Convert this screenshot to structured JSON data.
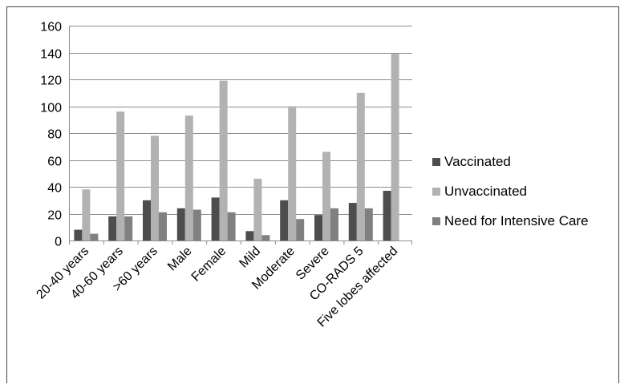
{
  "colors": {
    "background": "#ffffff",
    "grid": "#8c8c8c",
    "axis": "#8c8c8c",
    "frame": "#444444",
    "text": "#000000"
  },
  "chart_data": {
    "type": "bar",
    "title": "",
    "xlabel": "",
    "ylabel": "",
    "ylim": [
      0,
      160
    ],
    "yticks": [
      0,
      20,
      40,
      60,
      80,
      100,
      120,
      140,
      160
    ],
    "grid": true,
    "legend_position": "right",
    "categories": [
      "20-40 years",
      "40-60 years",
      ">60 years",
      "Male",
      "Female",
      "Mild",
      "Moderate",
      "Severe",
      "CO-RADS 5",
      "Five lobes affected"
    ],
    "series": [
      {
        "name": "Vaccinated",
        "color": "#4d4d4d",
        "values": [
          8,
          18,
          30,
          24,
          32,
          7,
          30,
          19,
          28,
          37
        ]
      },
      {
        "name": "Unvaccinated",
        "color": "#b2b2b2",
        "values": [
          38,
          96,
          78,
          93,
          119,
          46,
          100,
          66,
          110,
          139
        ]
      },
      {
        "name": "Need for Intensive Care",
        "color": "#808080",
        "values": [
          5,
          18,
          21,
          23,
          21,
          4,
          16,
          24,
          24,
          null
        ]
      }
    ]
  }
}
